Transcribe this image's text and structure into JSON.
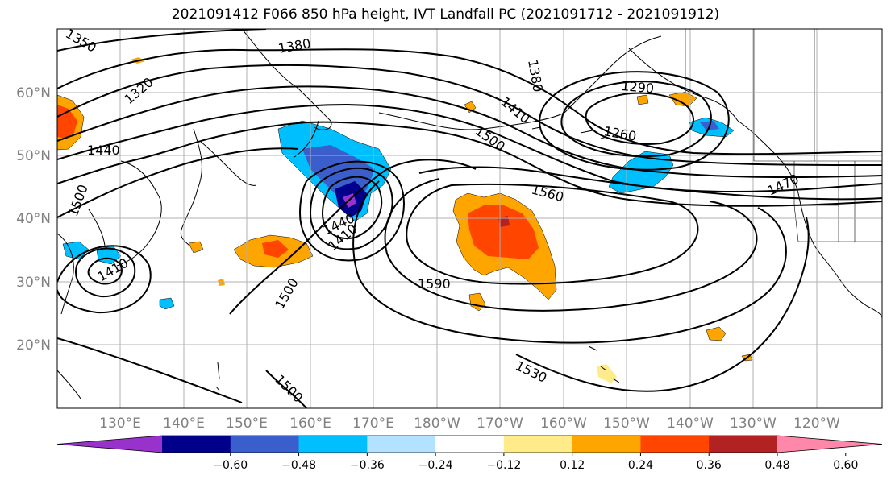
{
  "title": "2021091412 F066 850 hPa height, IVT Landfall PC (2021091712 - 2021091912)",
  "lat_labels": [
    "60°N",
    "50°N",
    "40°N",
    "30°N",
    "20°N"
  ],
  "lon_labels": [
    "130°E",
    "140°E",
    "150°E",
    "160°E",
    "170°E",
    "180°W",
    "170°W",
    "160°W",
    "150°W",
    "140°W",
    "130°W",
    "120°W"
  ],
  "contour_labels": [
    "1380",
    "1320",
    "1440",
    "1500",
    "1410",
    "1500",
    "1560",
    "1590",
    "1500",
    "1440",
    "1410",
    "1470",
    "1290",
    "1260",
    "1530",
    "1500",
    "1350",
    "1380",
    "1410"
  ],
  "colorbar": {
    "colors": [
      "#9932cc",
      "#00008b",
      "#3a5fcd",
      "#00bfff",
      "#b2e2ff",
      "#ffffff",
      "#ffeb8a",
      "#ffa500",
      "#ff4500",
      "#b22222",
      "#ff88aa"
    ],
    "tick_labels": [
      "−0.60",
      "−0.48",
      "−0.36",
      "−0.24",
      "−0.12",
      "0.12",
      "0.24",
      "0.36",
      "0.48",
      "0.60"
    ]
  }
}
